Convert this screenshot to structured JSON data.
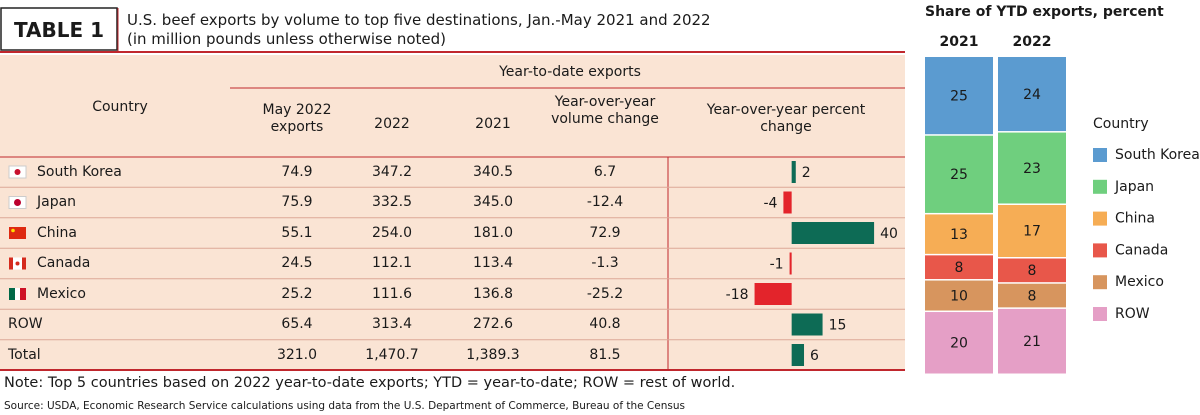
{
  "header": {
    "label": "TABLE 1",
    "title": "U.S. beef exports by volume to top five destinations, Jan.-May 2021 and 2022",
    "subtitle": "(in million pounds unless otherwise noted)"
  },
  "table": {
    "group_header": "Year-to-date exports",
    "columns": [
      "Country",
      "May 2022 exports",
      "2022",
      "2021",
      "Year-over-year volume change",
      "Year-over-year percent change"
    ],
    "rows": [
      [
        "South Korea",
        "74.9",
        "347.2",
        "340.5",
        "6.7"
      ],
      [
        "Japan",
        "75.9",
        "332.5",
        "345.0",
        "-12.4"
      ],
      [
        "China",
        "55.1",
        "254.0",
        "181.0",
        "72.9"
      ],
      [
        "Canada",
        "24.5",
        "112.1",
        "113.4",
        "-1.3"
      ],
      [
        "Mexico",
        "25.2",
        "111.6",
        "136.8",
        "-25.2"
      ],
      [
        "ROW",
        "65.4",
        "313.4",
        "272.6",
        "40.8"
      ],
      [
        "Total",
        "321.0",
        "1,470.7",
        "1,389.3",
        "81.5"
      ]
    ]
  },
  "chart_data": [
    {
      "type": "bar",
      "orientation": "horizontal",
      "values": [
        2,
        -4,
        40,
        -1,
        -18,
        15,
        6
      ],
      "xlim": [
        -60,
        55
      ],
      "positive_color": "#0d6b55",
      "negative_color": "#e3242b"
    },
    {
      "type": "stacked_bar",
      "title": "Share of YTD exports, percent",
      "categories": [
        "2021",
        "2022"
      ],
      "legend_title": "Country",
      "series": [
        {
          "name": "South Korea",
          "color": "#5b9bd0",
          "values": [
            25,
            24
          ]
        },
        {
          "name": "Japan",
          "color": "#6fcf7e",
          "values": [
            25,
            23
          ]
        },
        {
          "name": "China",
          "color": "#f6ad55",
          "values": [
            13,
            17
          ]
        },
        {
          "name": "Canada",
          "color": "#e8574a",
          "values": [
            8,
            8
          ]
        },
        {
          "name": "Mexico",
          "color": "#d7955e",
          "values": [
            10,
            8
          ]
        },
        {
          "name": "ROW",
          "color": "#e59fc6",
          "values": [
            20,
            21
          ]
        }
      ]
    }
  ],
  "note": "Note: Top 5 countries based on 2022 year-to-date exports; YTD = year-to-date; ROW = rest of world.",
  "source": "Source: USDA, Economic Research Service calculations using data from the U.S. Department of Commerce, Bureau of the Census"
}
